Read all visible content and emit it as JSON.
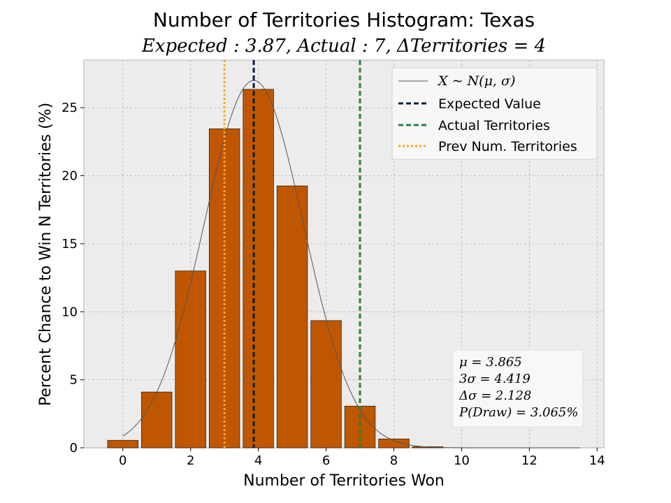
{
  "chart_data": {
    "type": "bar",
    "title": "Number of Territories Histogram: Texas",
    "subtitle": "Expected : 3.87, Actual : 7, ΔTerritories = 4",
    "xlabel": "Number of Territories Won",
    "ylabel": "Percent Chance to Win N Territories (%)",
    "xlim": [
      -1.15,
      14.2
    ],
    "ylim": [
      0,
      28.5
    ],
    "xticks": [
      0,
      2,
      4,
      6,
      8,
      10,
      12,
      14
    ],
    "yticks": [
      0,
      5,
      10,
      15,
      20,
      25
    ],
    "grid": true,
    "bar_color": "#bf5700",
    "categories": [
      0,
      1,
      2,
      3,
      4,
      5,
      6,
      7,
      8,
      9,
      10,
      11,
      12,
      13
    ],
    "values": [
      0.55,
      4.1,
      13.0,
      23.45,
      26.35,
      19.25,
      9.35,
      3.065,
      0.65,
      0.08,
      0.0,
      0.0,
      0.0,
      0.0
    ],
    "normal_curve": {
      "mu": 3.865,
      "sigma": 1.473,
      "peak": 27.0,
      "x_range": [
        0,
        13.5
      ]
    },
    "lines": {
      "expected": {
        "x": 3.865,
        "color": "#0b1d40"
      },
      "actual": {
        "x": 7,
        "color": "#2e7d3f"
      },
      "previous": {
        "x": 3,
        "color": "#ffa51f"
      }
    },
    "legend": {
      "position": "top-right",
      "entries": [
        "X ~ N(μ, σ)",
        "Expected Value",
        "Actual Territories",
        "Prev Num. Territories"
      ]
    },
    "stats_box": {
      "position": "bottom-right",
      "lines": [
        "μ = 3.865",
        "3σ = 4.419",
        "Δσ = 2.128",
        "P(Draw) = 3.065%"
      ]
    }
  }
}
